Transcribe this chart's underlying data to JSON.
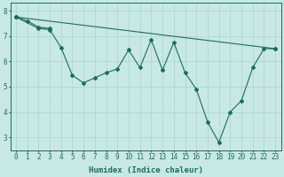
{
  "xlabel": "Humidex (Indice chaleur)",
  "bg_color": "#c8e8e4",
  "line_color": "#1e6b5e",
  "grid_color": "#a8d4ce",
  "xlim": [
    -0.5,
    23.5
  ],
  "ylim": [
    2.5,
    8.3
  ],
  "yticks": [
    3,
    4,
    5,
    6,
    7,
    8
  ],
  "xticks": [
    0,
    1,
    2,
    3,
    4,
    5,
    6,
    7,
    8,
    9,
    10,
    11,
    12,
    13,
    14,
    15,
    16,
    17,
    18,
    19,
    20,
    21,
    22,
    23
  ],
  "line1_x": [
    0,
    23
  ],
  "line1_y": [
    7.75,
    6.5
  ],
  "line2_x": [
    0,
    1,
    2,
    3
  ],
  "line2_y": [
    7.75,
    7.6,
    7.35,
    7.3
  ],
  "line3_x": [
    0,
    2,
    3,
    4,
    5,
    6,
    7,
    8,
    9,
    10,
    11,
    12,
    13,
    14,
    15,
    16,
    17,
    18,
    19,
    20,
    21,
    22,
    23
  ],
  "line3_y": [
    7.75,
    7.3,
    7.25,
    6.55,
    5.45,
    5.15,
    5.35,
    5.55,
    5.7,
    6.45,
    5.75,
    6.85,
    5.65,
    6.75,
    5.55,
    4.9,
    3.6,
    2.8,
    4.0,
    4.45,
    5.75,
    6.5,
    6.5
  ],
  "marker": "D",
  "markersize": 2.0,
  "linewidth": 0.8,
  "tick_fontsize": 5.5,
  "label_fontsize": 6.5
}
